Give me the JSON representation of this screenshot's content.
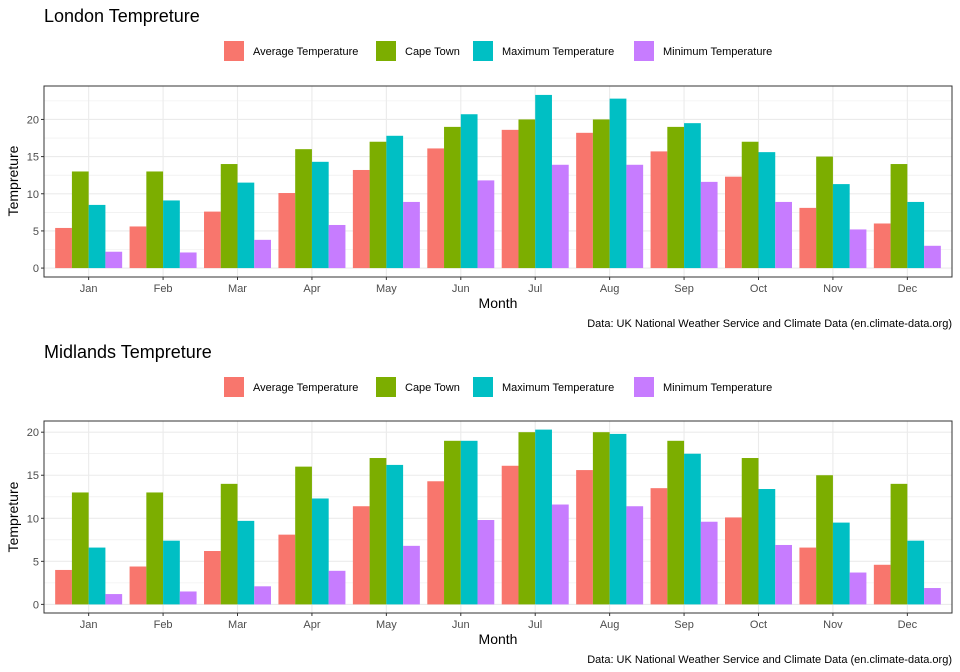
{
  "chart_data": [
    {
      "type": "bar",
      "title": "London Tempreture",
      "xlabel": "Month",
      "ylabel": "Tempreture",
      "caption": "Data: UK National Weather Service and Climate Data (en.climate-data.org)",
      "ylim": [
        -1.2,
        24.5
      ],
      "yticks": [
        0,
        5,
        10,
        15,
        20
      ],
      "grid": true,
      "legend_position": "top",
      "categories": [
        "Jan",
        "Feb",
        "Mar",
        "Apr",
        "May",
        "Jun",
        "Jul",
        "Aug",
        "Sep",
        "Oct",
        "Nov",
        "Dec"
      ],
      "series": [
        {
          "name": "Average Temperature",
          "color": "#F8766D",
          "values": [
            5.4,
            5.6,
            7.6,
            10.1,
            13.2,
            16.1,
            18.6,
            18.2,
            15.7,
            12.3,
            8.1,
            6.0
          ]
        },
        {
          "name": "Cape Town",
          "color": "#7CAE00",
          "values": [
            13,
            13,
            14,
            16,
            17,
            19,
            20,
            20,
            19,
            17,
            15,
            14
          ]
        },
        {
          "name": "Maximum Temperature",
          "color": "#00BFC4",
          "values": [
            8.5,
            9.1,
            11.5,
            14.3,
            17.8,
            20.7,
            23.3,
            22.8,
            19.5,
            15.6,
            11.3,
            8.9
          ]
        },
        {
          "name": "Minimum Temperature",
          "color": "#C77CFF",
          "values": [
            2.2,
            2.1,
            3.8,
            5.8,
            8.9,
            11.8,
            13.9,
            13.9,
            11.6,
            8.9,
            5.2,
            3.0
          ]
        }
      ]
    },
    {
      "type": "bar",
      "title": "Midlands Tempreture",
      "xlabel": "Month",
      "ylabel": "Tempreture",
      "caption": "Data: UK National Weather Service and Climate Data (en.climate-data.org)",
      "ylim": [
        -1.0,
        21.3
      ],
      "yticks": [
        0,
        5,
        10,
        15,
        20
      ],
      "grid": true,
      "legend_position": "top",
      "categories": [
        "Jan",
        "Feb",
        "Mar",
        "Apr",
        "May",
        "Jun",
        "Jul",
        "Aug",
        "Sep",
        "Oct",
        "Nov",
        "Dec"
      ],
      "series": [
        {
          "name": "Average Temperature",
          "color": "#F8766D",
          "values": [
            4.0,
            4.4,
            6.2,
            8.1,
            11.4,
            14.3,
            16.1,
            15.6,
            13.5,
            10.1,
            6.6,
            4.6
          ]
        },
        {
          "name": "Cape Town",
          "color": "#7CAE00",
          "values": [
            13,
            13,
            14,
            16,
            17,
            19,
            20,
            20,
            19,
            17,
            15,
            14
          ]
        },
        {
          "name": "Maximum Temperature",
          "color": "#00BFC4",
          "values": [
            6.6,
            7.4,
            9.7,
            12.3,
            16.2,
            19.0,
            20.3,
            19.8,
            17.5,
            13.4,
            9.5,
            7.4
          ]
        },
        {
          "name": "Minimum Temperature",
          "color": "#C77CFF",
          "values": [
            1.2,
            1.5,
            2.1,
            3.9,
            6.8,
            9.8,
            11.6,
            11.4,
            9.6,
            6.9,
            3.7,
            1.9
          ]
        }
      ]
    }
  ]
}
